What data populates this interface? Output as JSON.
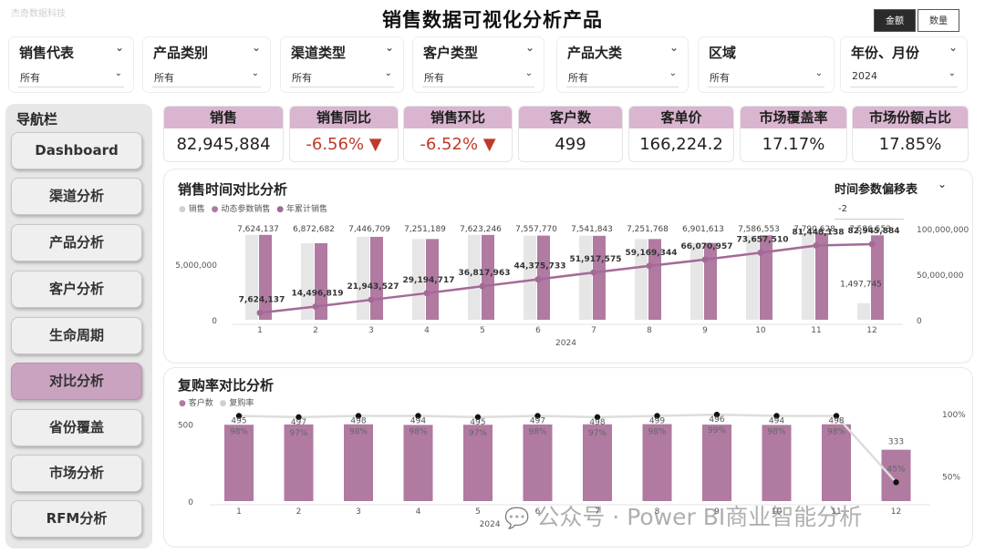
{
  "corner_watermark": "杰奇数据科技",
  "title": "销售数据可视化分析产品",
  "toggles": {
    "amount": "金额",
    "quantity": "数量"
  },
  "filters": [
    {
      "label": "销售代表",
      "value": "所有"
    },
    {
      "label": "产品类别",
      "value": "所有"
    },
    {
      "label": "渠道类型",
      "value": "所有"
    },
    {
      "label": "客户类型",
      "value": "所有"
    },
    {
      "label": "产品大类",
      "value": "所有"
    },
    {
      "label": "区域",
      "value": "所有"
    },
    {
      "label": "年份、月份",
      "value": "2024"
    }
  ],
  "nav": {
    "title": "导航栏",
    "items": [
      "Dashboard",
      "渠道分析",
      "产品分析",
      "客户分析",
      "生命周期",
      "对比分析",
      "省份覆盖",
      "市场分析",
      "RFM分析"
    ],
    "selected": "对比分析"
  },
  "kpis": [
    {
      "label": "销售",
      "value": "82,945,884",
      "negative": false
    },
    {
      "label": "销售同比",
      "value": "-6.56% ▼",
      "negative": true
    },
    {
      "label": "销售环比",
      "value": "-6.52% ▼",
      "negative": true
    },
    {
      "label": "客户数",
      "value": "499",
      "negative": false
    },
    {
      "label": "客单价",
      "value": "166,224.2",
      "negative": false
    },
    {
      "label": "市场覆盖率",
      "value": "17.17%",
      "negative": false
    },
    {
      "label": "市场份额占比",
      "value": "17.85%",
      "negative": false
    }
  ],
  "sales_card": {
    "title": "销售时间对比分析",
    "param_label": "时间参数偏移表",
    "param_value": "-2"
  },
  "repurchase_card": {
    "title": "复购率对比分析"
  },
  "watermark": "公众号 · Power BI商业智能分析",
  "colors": {
    "accent": "#b07aa1",
    "accent_light": "#d9b5cf",
    "bar_gray": "#e6e6e6",
    "line": "#a46a97",
    "negative": "#c0392b"
  },
  "chart_data": [
    {
      "type": "bar",
      "title": "销售时间对比分析",
      "xlabel": "2024",
      "categories": [
        "1",
        "2",
        "3",
        "4",
        "5",
        "6",
        "7",
        "8",
        "9",
        "10",
        "11",
        "12"
      ],
      "legend": [
        "销售",
        "动态参数销售",
        "年累计销售"
      ],
      "left_ticks": [
        "0",
        "5,000,000"
      ],
      "right_ticks": [
        "0",
        "50,000,000",
        "100,000,000"
      ],
      "ylim_left": [
        0,
        9000000
      ],
      "ylim_right": [
        0,
        110000000
      ],
      "series": [
        {
          "name": "销售",
          "values": [
            7624137,
            6872682,
            7446709,
            7251189,
            7623246,
            7557770,
            7541843,
            7251768,
            6901613,
            7586553,
            7790628,
            1497745
          ]
        },
        {
          "name": "动态参数销售",
          "values": [
            7624137,
            6872682,
            7446709,
            7251189,
            7623246,
            7557770,
            7541843,
            7251768,
            6901613,
            7586553,
            7790628,
            7586553
          ]
        },
        {
          "name": "年累计销售",
          "values": [
            7624137,
            14496819,
            21943527,
            29194717,
            36817963,
            44375733,
            51917575,
            59169344,
            66070957,
            73657510,
            81448138,
            82945884
          ]
        }
      ],
      "bar_labels": [
        "7,624,137",
        "6,872,682",
        "7,446,709",
        "7,251,189",
        "7,623,246",
        "7,557,770",
        "7,541,843",
        "7,251,768",
        "6,901,613",
        "7,586,553",
        "7,790,628",
        "7,586,553"
      ],
      "last_bar_label": "1,497,745",
      "line_labels": [
        "7,624,137",
        "14,496,819",
        "21,943,527",
        "29,194,717",
        "36,817,963",
        "44,375,733",
        "51,917,575",
        "59,169,344",
        "66,070,957",
        "73,657,510",
        "81,448,138",
        "82,945,884"
      ]
    },
    {
      "type": "bar",
      "title": "复购率对比分析",
      "xlabel": "2024",
      "categories": [
        "1",
        "2",
        "3",
        "4",
        "5",
        "6",
        "7",
        "8",
        "9",
        "10",
        "11",
        "12"
      ],
      "legend": [
        "客户数",
        "复购率"
      ],
      "left_ticks": [
        "0",
        "500"
      ],
      "right_ticks": [
        "50%",
        "100%"
      ],
      "ylim_left": [
        0,
        650
      ],
      "ylim_right": [
        30,
        110
      ],
      "series": [
        {
          "name": "客户数",
          "values": [
            495,
            497,
            498,
            494,
            495,
            497,
            498,
            499,
            496,
            494,
            498,
            333
          ]
        },
        {
          "name": "复购率",
          "values": [
            98,
            97,
            98,
            98,
            97,
            98,
            97,
            98,
            99,
            98,
            98,
            45
          ]
        }
      ],
      "bar_labels": [
        "495",
        "497",
        "498",
        "494",
        "495",
        "497",
        "498",
        "499",
        "496",
        "494",
        "498",
        "333"
      ],
      "rate_labels": [
        "98%",
        "97%",
        "98%",
        "98%",
        "97%",
        "98%",
        "97%",
        "98%",
        "99%",
        "98%",
        "98%",
        "45%"
      ]
    }
  ]
}
